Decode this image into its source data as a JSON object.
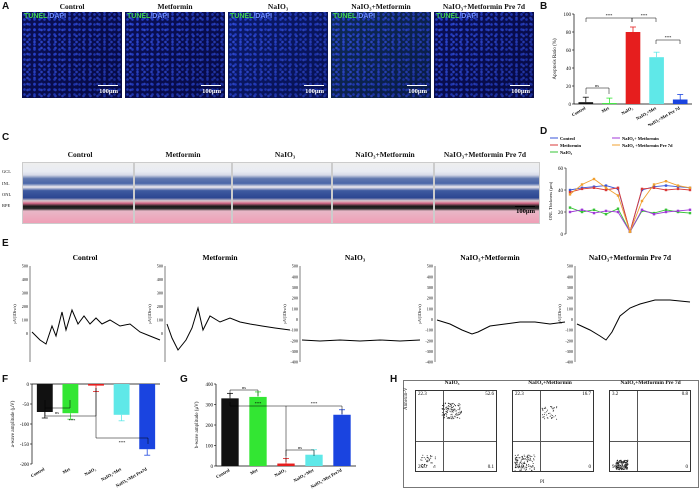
{
  "panel_letters": {
    "A": "A",
    "B": "B",
    "C": "C",
    "D": "D",
    "E": "E",
    "F": "F",
    "G": "G",
    "H": "H"
  },
  "groups": [
    "Control",
    "Metformin",
    "NaIO₃",
    "NaIO₃+Metformin",
    "NaIO₃+Metformin Pre 7d"
  ],
  "tunel": {
    "tunel_label": "TUNEL",
    "dapi_label": "/DAPI",
    "scale_bar": "100μm"
  },
  "he": {
    "layers": [
      "GCL",
      "INL",
      "ONL",
      "RPE"
    ],
    "scale_bar": "100μm"
  },
  "erg_y_axis_label": "μV(1Div/s)",
  "flow": {
    "titles": [
      "NaIO₃",
      "NaIO₃+Metformin",
      "NaIO₃+Metformin Pre 7d"
    ],
    "x_label": "PI",
    "y_label": "Annexin-V",
    "quadrants": [
      [
        "22.3",
        "52.6",
        "25.0",
        "0.1"
      ],
      [
        "22.3",
        "16.7",
        "60.0",
        "0"
      ],
      [
        "3.2",
        "0.8",
        "96.0",
        "0"
      ]
    ]
  },
  "colors": {
    "control": "#111111",
    "met": "#33e633",
    "naio3": "#e61e1e",
    "naio3_met": "#5fe8e8",
    "pre7d": "#1a44e0"
  },
  "chart_data": [
    {
      "type": "bar",
      "panel": "B",
      "ylabel": "Apoptosis Ratio (%)",
      "ylim": [
        0,
        100
      ],
      "yticks": [
        0,
        20,
        40,
        60,
        80,
        100
      ],
      "categories": [
        "Control",
        "Met",
        "NaIO₃",
        "NaIO₃+Met",
        "NaIO₃+Met Pre 7d"
      ],
      "values": [
        2,
        1,
        80,
        52,
        5
      ],
      "annotations": [
        "ns",
        "***",
        "***",
        "***"
      ]
    },
    {
      "type": "line",
      "panel": "D",
      "ylabel": "ONL Thickness (μm)",
      "ylim": [
        0,
        60
      ],
      "yticks": [
        0,
        20,
        40,
        60
      ],
      "series": [
        {
          "name": "Control",
          "values": [
            40,
            42,
            43,
            44,
            41,
            2,
            40,
            43,
            44,
            43,
            42
          ]
        },
        {
          "name": "Metformin",
          "values": [
            38,
            41,
            42,
            40,
            42,
            2,
            41,
            42,
            40,
            41,
            40
          ]
        },
        {
          "name": "NaIO₃",
          "values": [
            24,
            20,
            22,
            18,
            23,
            2,
            21,
            19,
            22,
            20,
            19
          ]
        },
        {
          "name": "NaIO₃+ Metformin",
          "values": [
            20,
            22,
            19,
            21,
            20,
            2,
            22,
            18,
            20,
            21,
            22
          ]
        },
        {
          "name": "NaIO₃ +Metformin Pre 7d",
          "values": [
            36,
            45,
            50,
            42,
            35,
            2,
            30,
            45,
            48,
            44,
            42
          ]
        }
      ]
    },
    {
      "type": "bar",
      "panel": "F",
      "ylabel": "a-wave amplitude (μV)",
      "ylim": [
        -200,
        0
      ],
      "yticks": [
        0,
        -50,
        -100,
        -150,
        -200
      ],
      "categories": [
        "Control",
        "Met",
        "NaIO₃",
        "NaIO₃+Met",
        "NaIO₃+Met Pre7d"
      ],
      "values": [
        -70,
        -73,
        -4,
        -77,
        -163
      ],
      "annotations": [
        "ns",
        "***",
        "***"
      ]
    },
    {
      "type": "bar",
      "panel": "G",
      "ylabel": "b-wave amplitude (μV)",
      "ylim": [
        0,
        400
      ],
      "yticks": [
        0,
        100,
        200,
        300,
        400
      ],
      "categories": [
        "Control",
        "Met",
        "NaIO₃",
        "NaIO₃+Met",
        "NaIO₃+Met Pre7d"
      ],
      "values": [
        330,
        337,
        12,
        55,
        250
      ],
      "annotations": [
        "ns",
        "ns",
        "***",
        "***"
      ]
    }
  ]
}
